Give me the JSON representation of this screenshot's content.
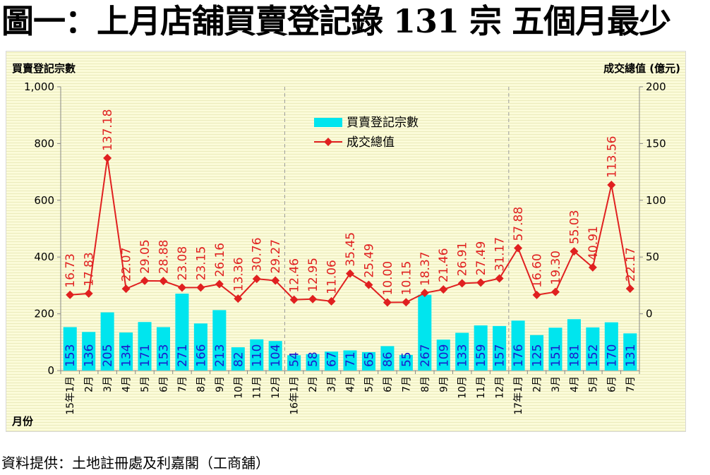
{
  "title": "圖一：上月店舖買賣登記錄 131 宗  五個月最少",
  "source": "資料提供：土地註冊處及利嘉閣（工商舖）",
  "colors": {
    "bar": "#00e5ee",
    "bar_label": "#1a1acc",
    "line": "#e02020",
    "line_label": "#e02020",
    "background": "#fbfbd9"
  },
  "chart_data": {
    "type": "bar",
    "left_axis_title": "買賣登記宗數",
    "right_axis_title": "成交總值 (億元)",
    "x_axis_title": "月份",
    "categories": [
      "15年1月",
      "2月",
      "3月",
      "4月",
      "5月",
      "6月",
      "7月",
      "8月",
      "9月",
      "10月",
      "11月",
      "12月",
      "16年1月",
      "2月",
      "3月",
      "4月",
      "5月",
      "6月",
      "7月",
      "8月",
      "9月",
      "10月",
      "11月",
      "12月",
      "17年1月",
      "2月",
      "3月",
      "4月",
      "5月",
      "6月",
      "7月"
    ],
    "left_axis": {
      "range": [
        0,
        1000
      ],
      "ticks": [
        "0",
        "200",
        "400",
        "600",
        "800",
        "1,000"
      ],
      "tick_values": [
        0,
        200,
        400,
        600,
        800,
        1000
      ]
    },
    "right_axis": {
      "range": [
        -50,
        200
      ],
      "ticks": [
        "0",
        "50",
        "100",
        "150",
        "200"
      ],
      "tick_values": [
        0,
        50,
        100,
        150,
        200
      ]
    },
    "series": [
      {
        "name": "買賣登記宗數",
        "type": "bar",
        "axis": "left",
        "values": [
          153,
          136,
          205,
          134,
          171,
          153,
          271,
          166,
          213,
          82,
          110,
          104,
          54,
          58,
          67,
          71,
          65,
          86,
          55,
          267,
          109,
          133,
          159,
          157,
          176,
          125,
          151,
          181,
          152,
          170,
          131
        ],
        "labels": [
          "153",
          "136",
          "205",
          "134",
          "171",
          "153",
          "271",
          "166",
          "213",
          "82",
          "110",
          "104",
          "54",
          "58",
          "67",
          "71",
          "65",
          "86",
          "55",
          "267",
          "109",
          "133",
          "159",
          "157",
          "176",
          "125",
          "151",
          "181",
          "152",
          "170",
          "131"
        ]
      },
      {
        "name": "成交總值",
        "type": "line",
        "axis": "right",
        "values": [
          16.73,
          17.83,
          137.18,
          22.07,
          29.05,
          28.88,
          23.08,
          23.15,
          26.16,
          13.36,
          30.76,
          29.27,
          12.46,
          12.95,
          11.06,
          35.45,
          25.49,
          10.0,
          10.15,
          18.37,
          21.46,
          26.91,
          27.49,
          31.17,
          57.88,
          16.6,
          19.3,
          55.03,
          40.91,
          113.56,
          22.17
        ],
        "labels": [
          "16.73",
          "17.83",
          "137.18",
          "22.07",
          "29.05",
          "28.88",
          "23.08",
          "23.15",
          "26.16",
          "13.36",
          "30.76",
          "29.27",
          "12.46",
          "12.95",
          "11.06",
          "35.45",
          "25.49",
          "10.00",
          "10.15",
          "18.37",
          "21.46",
          "26.91",
          "27.49",
          "31.17",
          "57.88",
          "16.60",
          "19.30",
          "55.03",
          "40.91",
          "113.56",
          "22.17"
        ]
      }
    ],
    "year_separators_after_index": [
      11,
      23
    ],
    "legend_position": "top-center",
    "grid": false
  }
}
